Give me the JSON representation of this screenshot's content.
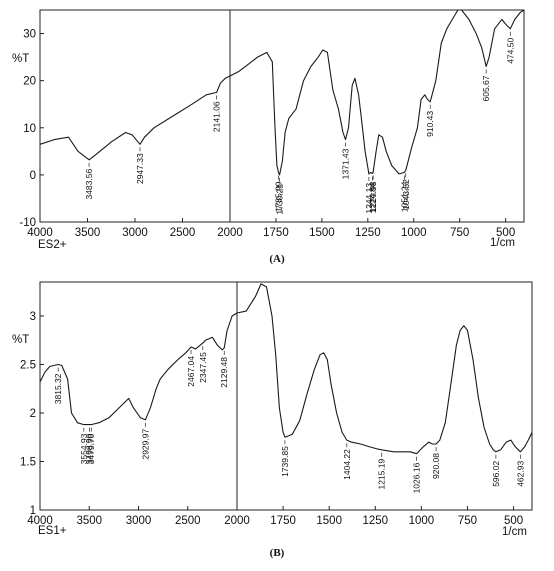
{
  "chart_data": [
    {
      "type": "line",
      "panel_label": "(A)",
      "y_unit": "%T",
      "x_unit": "1/cm",
      "sample_label": "ES2+",
      "xlim": [
        4000,
        400
      ],
      "ylim": [
        -10,
        35
      ],
      "x_ticks": [
        4000,
        3500,
        3000,
        2500,
        2000,
        1750,
        1500,
        1250,
        1000,
        750,
        500
      ],
      "y_ticks": [
        -10,
        0,
        10,
        20,
        30
      ],
      "series": [
        {
          "points": [
            [
              4000,
              6.5
            ],
            [
              3850,
              7.5
            ],
            [
              3700,
              8
            ],
            [
              3600,
              5
            ],
            [
              3483.56,
              3.2
            ],
            [
              3400,
              4.5
            ],
            [
              3250,
              7
            ],
            [
              3100,
              9
            ],
            [
              3030,
              8.5
            ],
            [
              2947.33,
              6.5
            ],
            [
              2900,
              8
            ],
            [
              2800,
              10
            ],
            [
              2600,
              12.5
            ],
            [
              2400,
              15
            ],
            [
              2250,
              17
            ],
            [
              2141.06,
              17.5
            ],
            [
              2100,
              19.5
            ],
            [
              2050,
              20.5
            ],
            [
              2000,
              21
            ],
            [
              1950,
              22
            ],
            [
              1900,
              23.5
            ],
            [
              1850,
              25
            ],
            [
              1800,
              26
            ],
            [
              1770,
              24
            ],
            [
              1755,
              10
            ],
            [
              1745,
              2
            ],
            [
              1735.99,
              0.5
            ],
            [
              1730.21,
              0
            ],
            [
              1715,
              3
            ],
            [
              1700,
              9
            ],
            [
              1680,
              12
            ],
            [
              1640,
              14
            ],
            [
              1600,
              20
            ],
            [
              1560,
              23
            ],
            [
              1520,
              25
            ],
            [
              1495,
              26.5
            ],
            [
              1470,
              26
            ],
            [
              1440,
              18
            ],
            [
              1410,
              14
            ],
            [
              1385,
              9
            ],
            [
              1371.43,
              7.5
            ],
            [
              1355,
              10
            ],
            [
              1335,
              19
            ],
            [
              1320,
              20.5
            ],
            [
              1300,
              17
            ],
            [
              1285,
              12
            ],
            [
              1265,
              5
            ],
            [
              1244.13,
              0.2
            ],
            [
              1235,
              0.5
            ],
            [
              1224.84,
              0.3
            ],
            [
              1220.98,
              0.5
            ],
            [
              1205,
              5
            ],
            [
              1190,
              8.5
            ],
            [
              1170,
              8
            ],
            [
              1150,
              5
            ],
            [
              1120,
              2
            ],
            [
              1080,
              0.2
            ],
            [
              1051.24,
              0.5
            ],
            [
              1043.52,
              1
            ],
            [
              1010,
              6
            ],
            [
              980,
              10
            ],
            [
              960,
              16
            ],
            [
              940,
              17
            ],
            [
              925,
              16
            ],
            [
              910.43,
              15.5
            ],
            [
              880,
              20
            ],
            [
              850,
              28
            ],
            [
              820,
              31
            ],
            [
              790,
              33
            ],
            [
              760,
              35
            ],
            [
              740,
              35
            ],
            [
              700,
              33
            ],
            [
              660,
              30
            ],
            [
              630,
              27
            ],
            [
              605.67,
              23
            ],
            [
              590,
              25
            ],
            [
              560,
              31
            ],
            [
              520,
              33
            ],
            [
              500,
              32
            ],
            [
              474.5,
              31
            ],
            [
              450,
              33
            ],
            [
              420,
              34.5
            ],
            [
              400,
              35
            ]
          ]
        }
      ],
      "peak_labels": [
        {
          "wavenumber": 3483.56,
          "text": "3483.56"
        },
        {
          "wavenumber": 2947.33,
          "text": "2947.33"
        },
        {
          "wavenumber": 2141.06,
          "text": "2141.06"
        },
        {
          "wavenumber": 1735.99,
          "text": "1735.99"
        },
        {
          "wavenumber": 1730.21,
          "text": "1730.21"
        },
        {
          "wavenumber": 1371.43,
          "text": "1371.43"
        },
        {
          "wavenumber": 1244.13,
          "text": "1244.13"
        },
        {
          "wavenumber": 1224.84,
          "text": "1224.84"
        },
        {
          "wavenumber": 1220.98,
          "text": "1220.98"
        },
        {
          "wavenumber": 1051.24,
          "text": "1051.24"
        },
        {
          "wavenumber": 1043.52,
          "text": "1043.52"
        },
        {
          "wavenumber": 910.43,
          "text": "910.43"
        },
        {
          "wavenumber": 605.67,
          "text": "605.67"
        },
        {
          "wavenumber": 474.5,
          "text": "474.50"
        }
      ]
    },
    {
      "type": "line",
      "panel_label": "(B)",
      "y_unit": "%T",
      "x_unit": "1/cm",
      "sample_label": "ES1+",
      "xlim": [
        4000,
        400
      ],
      "ylim": [
        1,
        3.35
      ],
      "x_ticks": [
        4000,
        3500,
        3000,
        2500,
        2000,
        1750,
        1500,
        1250,
        1000,
        750,
        500
      ],
      "y_ticks": [
        1,
        1.5,
        2,
        2.5,
        3
      ],
      "series": [
        {
          "points": [
            [
              4000,
              2.32
            ],
            [
              3950,
              2.42
            ],
            [
              3900,
              2.48
            ],
            [
              3815.32,
              2.5
            ],
            [
              3780,
              2.49
            ],
            [
              3720,
              2.35
            ],
            [
              3680,
              2.0
            ],
            [
              3620,
              1.9
            ],
            [
              3554.93,
              1.88
            ],
            [
              3498.99,
              1.88
            ],
            [
              3479.7,
              1.88
            ],
            [
              3400,
              1.9
            ],
            [
              3300,
              1.95
            ],
            [
              3200,
              2.05
            ],
            [
              3100,
              2.15
            ],
            [
              3050,
              2.05
            ],
            [
              2980,
              1.95
            ],
            [
              2929.97,
              1.93
            ],
            [
              2880,
              2.05
            ],
            [
              2820,
              2.25
            ],
            [
              2780,
              2.35
            ],
            [
              2700,
              2.45
            ],
            [
              2600,
              2.55
            ],
            [
              2520,
              2.62
            ],
            [
              2467.04,
              2.68
            ],
            [
              2420,
              2.66
            ],
            [
              2347.45,
              2.72
            ],
            [
              2320,
              2.75
            ],
            [
              2250,
              2.78
            ],
            [
              2200,
              2.7
            ],
            [
              2150,
              2.65
            ],
            [
              2129.48,
              2.67
            ],
            [
              2100,
              2.85
            ],
            [
              2050,
              3.0
            ],
            [
              2000,
              3.03
            ],
            [
              1950,
              3.05
            ],
            [
              1900,
              3.2
            ],
            [
              1870,
              3.33
            ],
            [
              1840,
              3.3
            ],
            [
              1810,
              3.0
            ],
            [
              1790,
              2.6
            ],
            [
              1770,
              2.05
            ],
            [
              1750,
              1.8
            ],
            [
              1739.85,
              1.75
            ],
            [
              1700,
              1.78
            ],
            [
              1660,
              1.92
            ],
            [
              1620,
              2.2
            ],
            [
              1580,
              2.45
            ],
            [
              1550,
              2.6
            ],
            [
              1530,
              2.62
            ],
            [
              1510,
              2.55
            ],
            [
              1490,
              2.3
            ],
            [
              1460,
              2.0
            ],
            [
              1430,
              1.8
            ],
            [
              1404.22,
              1.72
            ],
            [
              1380,
              1.7
            ],
            [
              1330,
              1.68
            ],
            [
              1280,
              1.65
            ],
            [
              1240,
              1.63
            ],
            [
              1215.19,
              1.62
            ],
            [
              1150,
              1.6
            ],
            [
              1100,
              1.6
            ],
            [
              1060,
              1.6
            ],
            [
              1026.16,
              1.58
            ],
            [
              990,
              1.65
            ],
            [
              960,
              1.7
            ],
            [
              940,
              1.68
            ],
            [
              920.08,
              1.68
            ],
            [
              900,
              1.72
            ],
            [
              870,
              1.9
            ],
            [
              840,
              2.3
            ],
            [
              810,
              2.7
            ],
            [
              790,
              2.85
            ],
            [
              770,
              2.9
            ],
            [
              750,
              2.85
            ],
            [
              720,
              2.55
            ],
            [
              690,
              2.15
            ],
            [
              660,
              1.85
            ],
            [
              630,
              1.68
            ],
            [
              610,
              1.62
            ],
            [
              596.02,
              1.6
            ],
            [
              570,
              1.62
            ],
            [
              540,
              1.7
            ],
            [
              515,
              1.72
            ],
            [
              490,
              1.65
            ],
            [
              462.93,
              1.6
            ],
            [
              440,
              1.65
            ],
            [
              420,
              1.72
            ],
            [
              400,
              1.8
            ]
          ]
        }
      ],
      "peak_labels": [
        {
          "wavenumber": 3815.32,
          "text": "3815.32"
        },
        {
          "wavenumber": 3554.93,
          "text": "3554.93"
        },
        {
          "wavenumber": 3498.99,
          "text": "3498.99"
        },
        {
          "wavenumber": 3479.7,
          "text": "3479.70"
        },
        {
          "wavenumber": 2929.97,
          "text": "2929.97"
        },
        {
          "wavenumber": 2467.04,
          "text": "2467.04"
        },
        {
          "wavenumber": 2347.45,
          "text": "2347.45"
        },
        {
          "wavenumber": 2129.48,
          "text": "2129.48"
        },
        {
          "wavenumber": 1739.85,
          "text": "1739.85"
        },
        {
          "wavenumber": 1404.22,
          "text": "1404.22"
        },
        {
          "wavenumber": 1215.19,
          "text": "1215.19"
        },
        {
          "wavenumber": 1026.16,
          "text": "1026.16"
        },
        {
          "wavenumber": 920.08,
          "text": "920.08"
        },
        {
          "wavenumber": 596.02,
          "text": "596.02"
        },
        {
          "wavenumber": 462.93,
          "text": "462.93"
        }
      ]
    }
  ]
}
